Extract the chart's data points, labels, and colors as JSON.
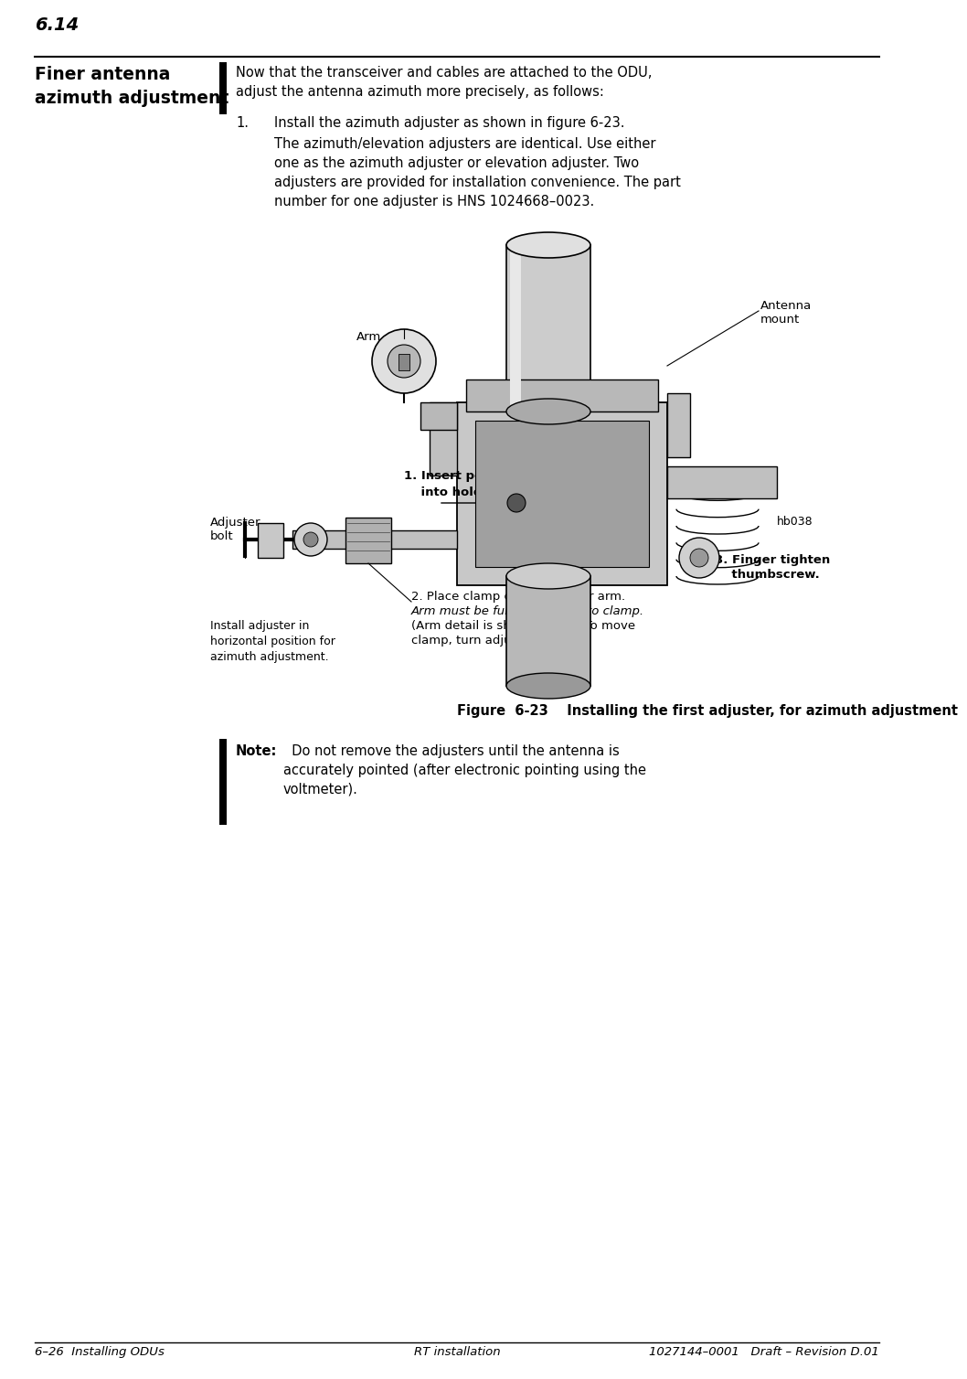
{
  "bg_color": "#ffffff",
  "page_number": "6.14",
  "section_title_line1": "Finer antenna",
  "section_title_line2": "azimuth adjustment",
  "footer_text_left": "6–26  Installing ODUs",
  "footer_text_center": "RT installation",
  "footer_text_right": "1027144–0001   Draft – Revision D.01",
  "body_text_intro": "Now that the transceiver and cables are attached to the ODU,\nadjust the antenna azimuth more precisely, as follows:",
  "step1_label": "1.",
  "step1_text": "Install the azimuth adjuster as shown in figure 6-23.",
  "step1_detail": "The azimuth/elevation adjusters are identical. Use either\none as the azimuth adjuster or elevation adjuster. Two\nadjusters are provided for installation convenience. The part\nnumber for one adjuster is HNS 1024668–0023.",
  "figure_caption": "Figure  6-23    Installing the first adjuster, for azimuth adjustment",
  "note_label": "Note:",
  "note_text": "  Do not remove the adjusters until the antenna is\naccurately pointed (after electronic pointing using the\nvoltmeter).",
  "label_antenna_mount": "Antenna\nmount",
  "label_arm": "Arm",
  "label_adjuster_bolt": "Adjuster\nbolt",
  "label_install_adjuster": "Install adjuster in\nhorizontal position for\nazimuth adjustment.",
  "label_hb038": "hb038",
  "label_1_insert_bold": "1. Insert peg",
  "label_1_insert_rest": "    into hole.",
  "label_2_place_normal": "2. Place clamp on rectangular arm.",
  "label_2_place_italic": "Arm must be fully inserted into clamp.",
  "label_2_place_end": "(Arm detail is shown above. To move\nclamp, turn adjuster bolt.)",
  "label_3_finger_bold": "3. Finger tighten",
  "label_3_finger_rest": "    thumbscrew.",
  "text_color": "#000000"
}
